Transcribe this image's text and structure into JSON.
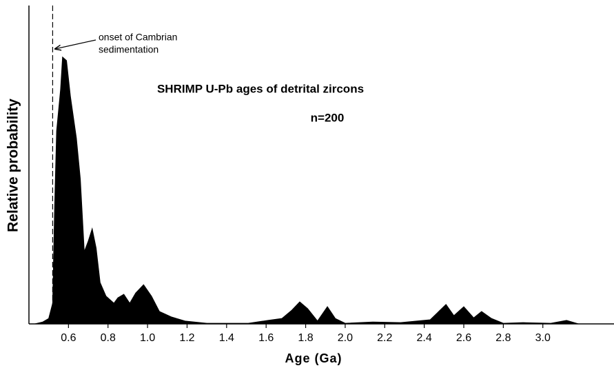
{
  "chart_data": {
    "type": "area",
    "title": "SHRIMP U-Pb ages of detrital zircons",
    "subtitle": "n=200",
    "x_label": "Age (Ga)",
    "y_label": "Relative probability",
    "annotation": {
      "lines": [
        "onset of Cambrian",
        "sedimentation"
      ],
      "x": 0.52
    },
    "color": "#000000",
    "x": [
      0.43,
      0.47,
      0.5,
      0.52,
      0.53,
      0.54,
      0.56,
      0.57,
      0.59,
      0.61,
      0.64,
      0.66,
      0.68,
      0.7,
      0.72,
      0.74,
      0.76,
      0.79,
      0.83,
      0.85,
      0.88,
      0.91,
      0.94,
      0.98,
      1.02,
      1.06,
      1.12,
      1.19,
      1.3,
      1.51,
      1.61,
      1.68,
      1.73,
      1.77,
      1.81,
      1.86,
      1.91,
      1.95,
      2.0,
      2.14,
      2.28,
      2.43,
      2.51,
      2.55,
      2.6,
      2.65,
      2.69,
      2.74,
      2.8,
      2.9,
      3.04,
      3.12,
      3.18
    ],
    "values": [
      0,
      0.6,
      1.7,
      6.5,
      36.8,
      60.6,
      73.6,
      83.8,
      82.7,
      71.4,
      58.4,
      45.5,
      22.7,
      26,
      29.9,
      23.8,
      13,
      8.7,
      6.5,
      8.2,
      9.3,
      6.5,
      9.7,
      12.3,
      8.7,
      3.9,
      2.2,
      0.9,
      0.2,
      0.2,
      1.1,
      1.7,
      4.3,
      6.9,
      4.8,
      0.9,
      5.4,
      1.7,
      0.2,
      0.6,
      0.4,
      1.3,
      6.1,
      2.6,
      5.4,
      1.9,
      3.9,
      1.7,
      0.2,
      0.4,
      0.2,
      1.1,
      0
    ],
    "xlim": [
      0.4,
      3.36
    ],
    "ylim": [
      0,
      100
    ],
    "xticks": [
      0.6,
      0.8,
      {
        "value": 1,
        "label": "1.0"
      },
      1.2,
      1.4,
      1.6,
      1.8,
      {
        "value": 2,
        "label": "2.0"
      },
      2.2,
      2.4,
      2.6,
      2.8,
      {
        "value": 3,
        "label": "3.0"
      }
    ]
  }
}
